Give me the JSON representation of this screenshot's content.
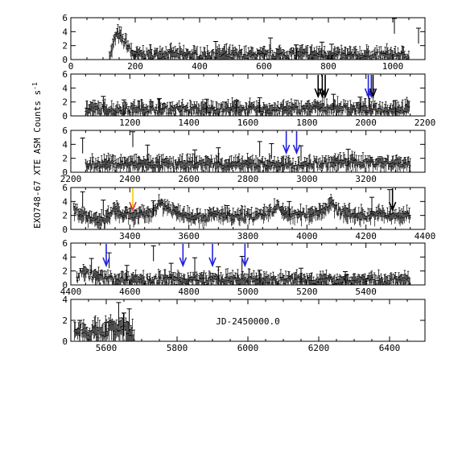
{
  "figure": {
    "ylabel": "EXO748-67 XTE ASM Counts s",
    "ylabel_sup": "-1",
    "xlabel": "JD-2450000.0"
  },
  "chart_data": [
    {
      "type": "scatter",
      "xlim": [
        0,
        1100
      ],
      "ylim": [
        0,
        6
      ],
      "xticks": [
        0,
        200,
        400,
        600,
        800,
        1000
      ],
      "yticks": [
        0,
        2,
        4,
        6
      ],
      "show_x_labels": true,
      "points": [
        [
          120,
          0.5
        ],
        [
          125,
          0.9
        ],
        [
          130,
          1.8
        ],
        [
          135,
          2.7
        ],
        [
          140,
          3.3
        ],
        [
          145,
          3.6
        ],
        [
          150,
          3.4
        ],
        [
          155,
          3.2
        ],
        [
          160,
          2.8
        ],
        [
          165,
          2.4
        ],
        [
          170,
          2.5
        ],
        [
          175,
          2.0
        ],
        [
          180,
          1.7
        ],
        [
          185,
          1.2
        ],
        [
          190,
          0.9
        ],
        [
          200,
          0.6
        ],
        [
          240,
          0.6
        ],
        [
          300,
          0.7
        ],
        [
          400,
          0.5
        ],
        [
          500,
          0.6
        ],
        [
          600,
          0.5
        ],
        [
          700,
          0.7
        ],
        [
          800,
          0.6
        ],
        [
          900,
          0.5
        ],
        [
          1000,
          0.6
        ],
        [
          1050,
          0.5
        ]
      ],
      "spikes": [
        [
          450,
          2.6
        ],
        [
          620,
          3.1
        ],
        [
          700,
          2.1
        ],
        [
          780,
          2.5
        ],
        [
          810,
          2.2
        ],
        [
          1005,
          5.9
        ],
        [
          1080,
          4.5
        ]
      ],
      "arrows": []
    },
    {
      "type": "scatter",
      "xlim": [
        1000,
        2200
      ],
      "ylim": [
        0,
        6
      ],
      "xticks": [
        1200,
        1400,
        1600,
        1800,
        2000,
        2200
      ],
      "yticks": [
        0,
        2,
        4,
        6
      ],
      "show_x_labels": true,
      "points": [
        [
          1050,
          0.9
        ],
        [
          1150,
          0.8
        ],
        [
          1250,
          1.0
        ],
        [
          1350,
          0.9
        ],
        [
          1450,
          0.8
        ],
        [
          1550,
          1.0
        ],
        [
          1650,
          0.8
        ],
        [
          1750,
          0.9
        ],
        [
          1850,
          1.1
        ],
        [
          1950,
          1.0
        ],
        [
          2050,
          0.9
        ],
        [
          2150,
          1.0
        ]
      ],
      "spikes": [
        [
          1110,
          2.8
        ],
        [
          1180,
          2.3
        ],
        [
          1300,
          2.5
        ],
        [
          1460,
          2.4
        ],
        [
          1560,
          2.1
        ],
        [
          1640,
          2.6
        ],
        [
          1890,
          3.1
        ],
        [
          1980,
          2.7
        ],
        [
          2010,
          3.0
        ],
        [
          2100,
          2.2
        ]
      ],
      "arrows": [
        {
          "x": 1838,
          "color": "#000000"
        },
        {
          "x": 1852,
          "color": "#000000"
        },
        {
          "x": 1862,
          "color": "#000000"
        },
        {
          "x": 2008,
          "color": "#2222dd"
        },
        {
          "x": 2018,
          "color": "#2222dd"
        },
        {
          "x": 2024,
          "color": "#000000"
        }
      ]
    },
    {
      "type": "scatter",
      "xlim": [
        2200,
        3400
      ],
      "ylim": [
        0,
        6
      ],
      "xticks": [
        2200,
        2400,
        2600,
        2800,
        3000,
        3200
      ],
      "yticks": [
        0,
        2,
        4,
        6
      ],
      "show_x_labels": true,
      "points": [
        [
          2250,
          1.0
        ],
        [
          2350,
          1.2
        ],
        [
          2450,
          1.1
        ],
        [
          2550,
          1.0
        ],
        [
          2650,
          1.2
        ],
        [
          2750,
          1.0
        ],
        [
          2850,
          1.1
        ],
        [
          2950,
          0.9
        ],
        [
          3050,
          1.2
        ],
        [
          3150,
          1.4
        ],
        [
          3250,
          1.3
        ],
        [
          3350,
          1.2
        ]
      ],
      "spikes": [
        [
          2240,
          4.9
        ],
        [
          2410,
          5.8
        ],
        [
          2460,
          3.9
        ],
        [
          2620,
          3.2
        ],
        [
          2700,
          3.5
        ],
        [
          2840,
          4.4
        ],
        [
          2880,
          4.1
        ],
        [
          2980,
          3.8
        ],
        [
          3140,
          3.3
        ]
      ],
      "arrows": [
        {
          "x": 2930,
          "color": "#2222dd"
        },
        {
          "x": 2965,
          "color": "#2222dd"
        }
      ]
    },
    {
      "type": "scatter",
      "xlim": [
        3200,
        4400
      ],
      "ylim": [
        0,
        6
      ],
      "xticks": [
        3400,
        3600,
        3800,
        4000,
        4200,
        4400
      ],
      "yticks": [
        0,
        2,
        4,
        6
      ],
      "show_x_labels": true,
      "points": [
        [
          3210,
          2.8
        ],
        [
          3240,
          2.2
        ],
        [
          3260,
          1.6
        ],
        [
          3290,
          1.0
        ],
        [
          3320,
          1.4
        ],
        [
          3350,
          2.9
        ],
        [
          3370,
          2.0
        ],
        [
          3420,
          1.9
        ],
        [
          3470,
          2.2
        ],
        [
          3500,
          3.7
        ],
        [
          3520,
          3.3
        ],
        [
          3550,
          2.5
        ],
        [
          3600,
          2.0
        ],
        [
          3650,
          1.7
        ],
        [
          3700,
          2.1
        ],
        [
          3750,
          1.6
        ],
        [
          3800,
          1.9
        ],
        [
          3850,
          1.8
        ],
        [
          3880,
          2.6
        ],
        [
          3900,
          3.2
        ],
        [
          3920,
          2.3
        ],
        [
          3960,
          1.9
        ],
        [
          4000,
          2.1
        ],
        [
          4050,
          2.6
        ],
        [
          4080,
          3.6
        ],
        [
          4100,
          2.8
        ],
        [
          4150,
          2.0
        ],
        [
          4200,
          1.9
        ],
        [
          4250,
          2.1
        ],
        [
          4300,
          1.8
        ],
        [
          4350,
          2.0
        ]
      ],
      "spikes": [
        [
          3240,
          5.4
        ],
        [
          3310,
          4.2
        ],
        [
          3480,
          4.1
        ],
        [
          3730,
          3.4
        ],
        [
          3940,
          4.0
        ],
        [
          4220,
          4.6
        ],
        [
          4280,
          5.7
        ]
      ],
      "arrows": [
        {
          "x": 3410,
          "color": "#dd3333",
          "color2": "#eecc00"
        },
        {
          "x": 4290,
          "color": "#000000"
        }
      ]
    },
    {
      "type": "scatter",
      "xlim": [
        4400,
        5600
      ],
      "ylim": [
        0,
        6
      ],
      "xticks": [
        4400,
        4600,
        4800,
        5000,
        5200,
        5400
      ],
      "yticks": [
        0,
        2,
        4,
        6
      ],
      "show_x_labels": true,
      "points": [
        [
          4420,
          0.9
        ],
        [
          4440,
          2.2
        ],
        [
          4460,
          1.4
        ],
        [
          4500,
          1.0
        ],
        [
          4550,
          0.7
        ],
        [
          4600,
          0.8
        ],
        [
          4650,
          0.6
        ],
        [
          4700,
          0.7
        ],
        [
          4750,
          0.6
        ],
        [
          4800,
          0.7
        ],
        [
          4850,
          0.6
        ],
        [
          4900,
          0.7
        ],
        [
          4950,
          0.6
        ],
        [
          5000,
          0.7
        ],
        [
          5050,
          0.6
        ],
        [
          5100,
          0.6
        ],
        [
          5150,
          0.7
        ],
        [
          5200,
          0.6
        ],
        [
          5250,
          0.5
        ],
        [
          5300,
          0.6
        ],
        [
          5350,
          0.5
        ],
        [
          5400,
          0.6
        ],
        [
          5450,
          0.5
        ],
        [
          5500,
          0.6
        ],
        [
          5550,
          0.5
        ]
      ],
      "spikes": [
        [
          4470,
          3.8
        ],
        [
          4530,
          4.6
        ],
        [
          4590,
          2.8
        ],
        [
          4680,
          5.6
        ],
        [
          4740,
          3.1
        ],
        [
          4820,
          3.9
        ],
        [
          4900,
          2.6
        ],
        [
          4980,
          4.1
        ],
        [
          5040,
          2.1
        ],
        [
          5180,
          2.4
        ],
        [
          5330,
          1.9
        ]
      ],
      "arrows": [
        {
          "x": 4520,
          "color": "#2222dd"
        },
        {
          "x": 4780,
          "color": "#2222dd"
        },
        {
          "x": 4880,
          "color": "#2222dd"
        },
        {
          "x": 4990,
          "color": "#2222dd"
        }
      ]
    },
    {
      "type": "scatter",
      "xlim": [
        5500,
        6500
      ],
      "ylim": [
        0,
        4
      ],
      "xticks": [
        5600,
        5800,
        6000,
        6200,
        6400
      ],
      "yticks": [
        0,
        2,
        4
      ],
      "show_x_labels": true,
      "points": [
        [
          5510,
          0.8
        ],
        [
          5530,
          1.2
        ],
        [
          5550,
          0.6
        ],
        [
          5570,
          1.0
        ],
        [
          5590,
          0.7
        ],
        [
          5610,
          1.3
        ],
        [
          5630,
          0.9
        ],
        [
          5650,
          1.1
        ],
        [
          5670,
          0.8
        ],
        [
          5680,
          0.6
        ]
      ],
      "spikes": [
        [
          5525,
          2.0
        ],
        [
          5600,
          1.8
        ],
        [
          5635,
          3.7
        ],
        [
          5650,
          2.7
        ],
        [
          5665,
          3.1
        ]
      ],
      "arrows": []
    }
  ]
}
